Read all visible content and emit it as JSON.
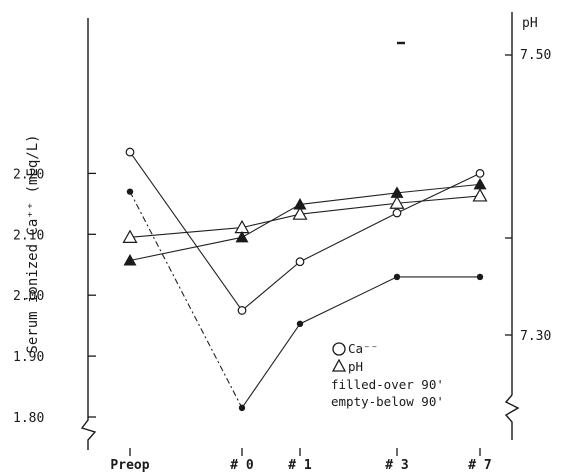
{
  "chart_data": {
    "type": "line",
    "categories": [
      "Preop",
      "# 0",
      "# 1",
      "# 3",
      "# 7"
    ],
    "ylabel": "Serum ionized Ca⁺⁺ (mEq/L)",
    "ylim": [
      1.8,
      2.24
    ],
    "yticks": [
      "1.80",
      "1.90",
      "2.00",
      "2.10",
      "2.20"
    ],
    "y2label": "pH",
    "y2ticks": [
      "7.30",
      "7.50"
    ],
    "legend": {
      "ca_label": "Ca⁻⁻",
      "ph_label": "pH",
      "filled_note": "filled-over 90'",
      "empty_note": "empty-below 90'"
    },
    "series": [
      {
        "legend_group": "Ca",
        "marker": "open-circle",
        "values": [
          2.235,
          1.975,
          2.055,
          2.135,
          2.2
        ]
      },
      {
        "legend_group": "Ca",
        "marker": "filled-circle",
        "values": [
          2.17,
          1.815,
          1.953,
          2.03,
          2.03
        ]
      },
      {
        "legend_group": "pH",
        "marker": "open-triangle",
        "values": [
          2.095,
          2.111,
          2.133,
          2.151,
          2.163
        ]
      },
      {
        "legend_group": "pH",
        "marker": "filled-triangle",
        "values": [
          2.057,
          2.095,
          2.149,
          2.168,
          2.182
        ]
      }
    ]
  }
}
